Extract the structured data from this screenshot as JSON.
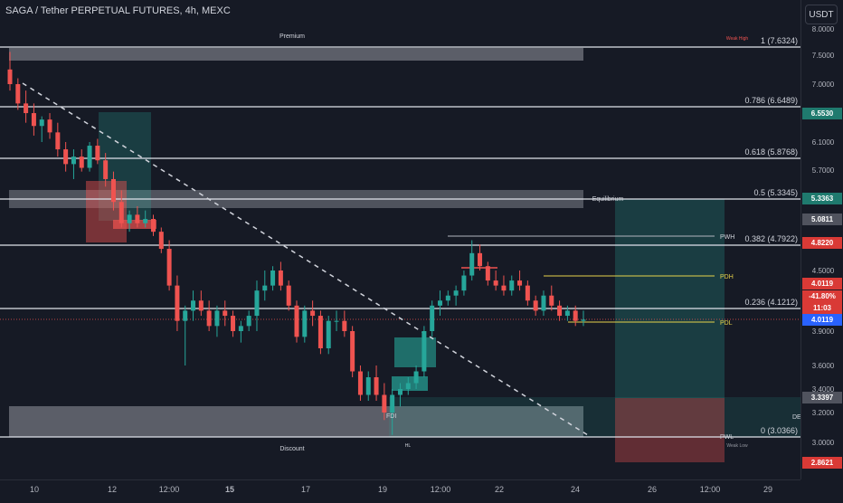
{
  "header": {
    "title": "SAGA / Tether PERPETUAL FUTURES, 4h, MEXC",
    "currency_button": "USDT"
  },
  "colors": {
    "background": "#161a25",
    "bull": "#26a69a",
    "bear": "#ef5350",
    "fib_line": "#e0e3eb",
    "pdh": "#e6d34a",
    "premium_zone": "#9598a1",
    "trend_line": "#d1d4dc"
  },
  "zones": {
    "premium_label": "Premium",
    "discount_label": "Discount",
    "equilibrium_label": "Equilibrium",
    "weak_high_label": "Weak High",
    "weak_low_label": "Weak Low",
    "hl_label": "HL"
  },
  "fib_levels": [
    {
      "label": "1 (7.6324)",
      "price": 7.6324
    },
    {
      "label": "0.786 (6.6489)",
      "price": 6.6489
    },
    {
      "label": "0.618 (5.8768)",
      "price": 5.8768
    },
    {
      "label": "0.5 (5.3345)",
      "price": 5.3345
    },
    {
      "label": "0.382 (4.7922)",
      "price": 4.7922
    },
    {
      "label": "0.236 (4.1212)",
      "price": 4.1212
    },
    {
      "label": "0 (3.0366)",
      "price": 3.0366
    }
  ],
  "key_levels": {
    "pwh": "PWH",
    "pdh": "PDH",
    "pdl": "PDL",
    "pwl": "PWL",
    "dea": "DEA",
    "fdi": "FDI"
  },
  "price_axis": {
    "ticks": [
      "8.0000",
      "7.5000",
      "7.0000",
      "6.1000",
      "5.7000",
      "4.5000",
      "3.9000",
      "3.6000",
      "3.4000",
      "3.2000",
      "3.0000"
    ],
    "badges": [
      {
        "text": "6.5530",
        "color": "#1f7a6e"
      },
      {
        "text": "5.3363",
        "color": "#1f7a6e"
      },
      {
        "text": "5.0811",
        "color": "#50535e"
      },
      {
        "text": "4.8220",
        "color": "#d93a36"
      },
      {
        "text": "4.0119",
        "color": "#d93a36"
      },
      {
        "text": "-41.80%",
        "color": "#d93a36"
      },
      {
        "text": "11:03",
        "color": "#d93a36"
      },
      {
        "text": "4.0119",
        "color": "#2962ff"
      },
      {
        "text": "3.3397",
        "color": "#50535e"
      },
      {
        "text": "2.8621",
        "color": "#d93a36"
      }
    ]
  },
  "time_axis": {
    "labels": [
      {
        "text": "10",
        "bold": false
      },
      {
        "text": "12",
        "bold": false
      },
      {
        "text": "12:00",
        "bold": false
      },
      {
        "text": "15",
        "bold": true
      },
      {
        "text": "17",
        "bold": false
      },
      {
        "text": "19",
        "bold": false
      },
      {
        "text": "12:00",
        "bold": false
      },
      {
        "text": "22",
        "bold": false
      },
      {
        "text": "24",
        "bold": false
      },
      {
        "text": "26",
        "bold": false
      },
      {
        "text": "12:00",
        "bold": false
      },
      {
        "text": "29",
        "bold": false
      }
    ]
  },
  "chart_data": {
    "type": "candlestick",
    "symbol": "SAGA / Tether PERPETUAL FUTURES",
    "timeframe": "4h",
    "exchange": "MEXC",
    "last_price": 4.0119,
    "change_percent": -41.8,
    "candles": [
      [
        7.25,
        7.55,
        6.9,
        7.0
      ],
      [
        7.0,
        7.1,
        6.6,
        6.7
      ],
      [
        6.7,
        6.9,
        6.4,
        6.55
      ],
      [
        6.55,
        6.7,
        6.2,
        6.35
      ],
      [
        6.35,
        6.5,
        6.1,
        6.45
      ],
      [
        6.45,
        6.55,
        6.15,
        6.25
      ],
      [
        6.25,
        6.4,
        5.9,
        6.0
      ],
      [
        6.0,
        6.1,
        5.7,
        5.8
      ],
      [
        5.8,
        6.0,
        5.6,
        5.9
      ],
      [
        5.9,
        6.0,
        5.7,
        5.75
      ],
      [
        5.75,
        6.1,
        5.7,
        6.05
      ],
      [
        6.05,
        6.15,
        5.8,
        5.85
      ],
      [
        5.85,
        5.95,
        5.5,
        5.6
      ],
      [
        5.6,
        5.7,
        5.2,
        5.3
      ],
      [
        5.3,
        5.45,
        5.0,
        5.05
      ],
      [
        5.05,
        5.2,
        4.95,
        5.15
      ],
      [
        5.15,
        5.25,
        5.0,
        5.05
      ],
      [
        5.05,
        5.2,
        5.0,
        5.1
      ],
      [
        5.1,
        5.15,
        4.9,
        4.95
      ],
      [
        4.95,
        5.0,
        4.7,
        4.75
      ],
      [
        4.75,
        4.85,
        4.3,
        4.35
      ],
      [
        4.35,
        4.45,
        3.9,
        4.0
      ],
      [
        4.0,
        4.15,
        3.6,
        4.1
      ],
      [
        4.1,
        4.3,
        4.0,
        4.2
      ],
      [
        4.2,
        4.3,
        4.05,
        4.1
      ],
      [
        4.1,
        4.2,
        3.9,
        3.95
      ],
      [
        3.95,
        4.15,
        3.85,
        4.1
      ],
      [
        4.1,
        4.2,
        3.95,
        4.05
      ],
      [
        4.05,
        4.1,
        3.85,
        3.9
      ],
      [
        3.9,
        4.0,
        3.8,
        3.95
      ],
      [
        3.95,
        4.1,
        3.9,
        4.05
      ],
      [
        4.05,
        4.4,
        3.9,
        4.3
      ],
      [
        4.3,
        4.5,
        4.2,
        4.35
      ],
      [
        4.35,
        4.55,
        4.3,
        4.5
      ],
      [
        4.5,
        4.6,
        4.3,
        4.35
      ],
      [
        4.35,
        4.4,
        4.1,
        4.15
      ],
      [
        4.15,
        4.2,
        3.8,
        3.85
      ],
      [
        3.85,
        4.15,
        3.8,
        4.1
      ],
      [
        4.1,
        4.2,
        3.95,
        4.05
      ],
      [
        4.05,
        4.1,
        3.7,
        3.75
      ],
      [
        3.75,
        4.05,
        3.7,
        4.0
      ],
      [
        4.0,
        4.1,
        3.9,
        4.0
      ],
      [
        4.0,
        4.1,
        3.85,
        3.9
      ],
      [
        3.9,
        3.95,
        3.5,
        3.55
      ],
      [
        3.55,
        3.6,
        3.3,
        3.35
      ],
      [
        3.35,
        3.55,
        3.3,
        3.5
      ],
      [
        3.5,
        3.6,
        3.3,
        3.35
      ],
      [
        3.35,
        3.45,
        3.15,
        3.2
      ],
      [
        3.2,
        3.4,
        3.05,
        3.35
      ],
      [
        3.35,
        3.45,
        3.25,
        3.4
      ],
      [
        3.4,
        3.5,
        3.35,
        3.45
      ],
      [
        3.45,
        3.6,
        3.4,
        3.55
      ],
      [
        3.55,
        3.95,
        3.5,
        3.9
      ],
      [
        3.9,
        4.2,
        3.85,
        4.15
      ],
      [
        4.15,
        4.3,
        4.05,
        4.2
      ],
      [
        4.2,
        4.3,
        4.15,
        4.25
      ],
      [
        4.25,
        4.35,
        4.15,
        4.3
      ],
      [
        4.3,
        4.5,
        4.25,
        4.45
      ],
      [
        4.45,
        4.85,
        4.4,
        4.7
      ],
      [
        4.7,
        4.8,
        4.5,
        4.55
      ],
      [
        4.55,
        4.6,
        4.35,
        4.4
      ],
      [
        4.4,
        4.5,
        4.3,
        4.35
      ],
      [
        4.35,
        4.45,
        4.25,
        4.3
      ],
      [
        4.3,
        4.45,
        4.25,
        4.4
      ],
      [
        4.4,
        4.5,
        4.3,
        4.35
      ],
      [
        4.35,
        4.4,
        4.15,
        4.2
      ],
      [
        4.2,
        4.25,
        4.05,
        4.1
      ],
      [
        4.1,
        4.3,
        4.05,
        4.25
      ],
      [
        4.25,
        4.35,
        4.1,
        4.15
      ],
      [
        4.15,
        4.2,
        4.0,
        4.05
      ],
      [
        4.05,
        4.15,
        4.0,
        4.1
      ],
      [
        4.1,
        4.15,
        3.95,
        4.0
      ],
      [
        4.0,
        4.1,
        3.95,
        4.0119
      ]
    ]
  }
}
